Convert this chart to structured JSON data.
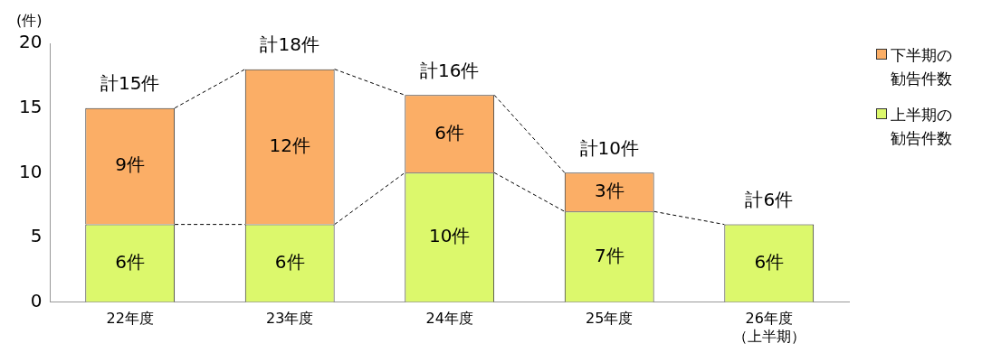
{
  "chart_data": {
    "type": "bar",
    "stacked": true,
    "ylabel": "(件)",
    "categories": [
      "22年度",
      "23年度",
      "24年度",
      "25年度",
      "26年度（上半期）"
    ],
    "series": [
      {
        "name": "上半期の勧告件数",
        "color": "#dcf86c",
        "values": [
          6,
          6,
          10,
          7,
          6
        ],
        "value_labels": [
          "6件",
          "6件",
          "10件",
          "7件",
          "6件"
        ]
      },
      {
        "name": "下半期の勧告件数",
        "color": "#fbae66",
        "values": [
          9,
          12,
          6,
          3,
          null
        ],
        "value_labels": [
          "9件",
          "12件",
          "6件",
          "3件",
          null
        ]
      }
    ],
    "totals": [
      "計15件",
      "計18件",
      "計16件",
      "計10件",
      "計6件"
    ],
    "ylim": [
      0,
      20
    ],
    "yticks": [
      0,
      5,
      10,
      15,
      20
    ],
    "grid": false,
    "legend": "right"
  }
}
